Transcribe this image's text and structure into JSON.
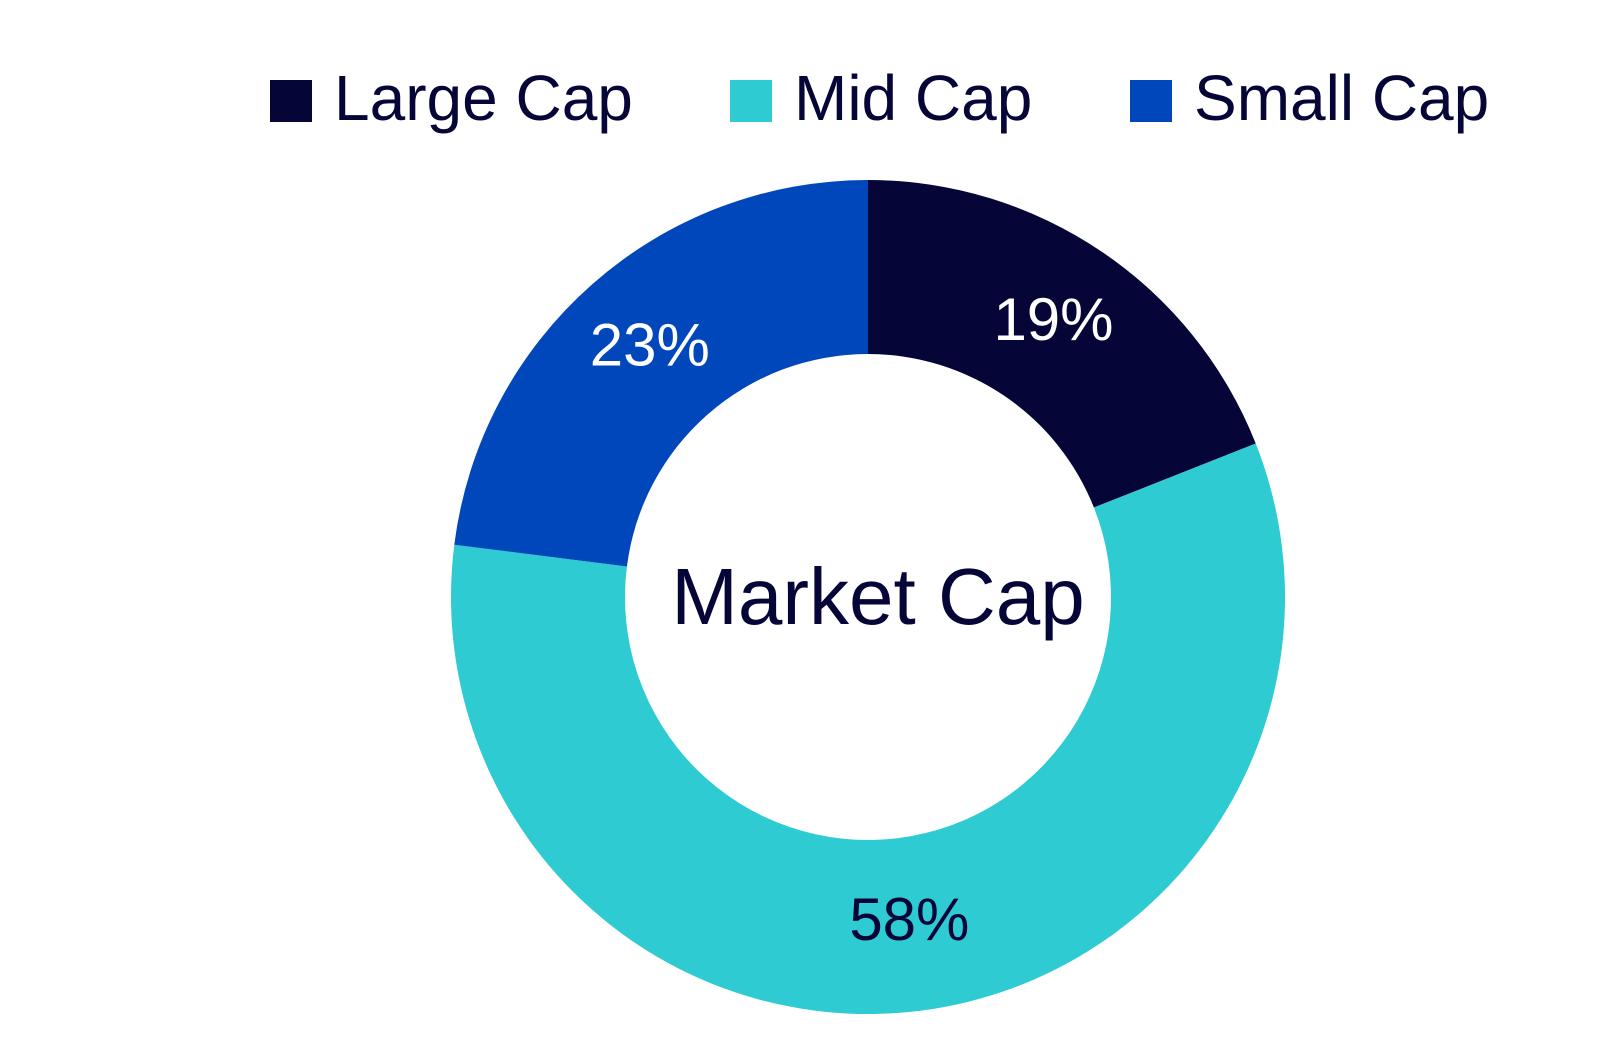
{
  "chart_data": {
    "type": "donut",
    "title": "Market Cap",
    "categories": [
      "Large Cap",
      "Mid Cap",
      "Small Cap"
    ],
    "values": [
      19,
      58,
      23
    ],
    "value_labels": [
      "19%",
      "58%",
      "23%"
    ],
    "colors": [
      "#050537",
      "#2ecbd2",
      "#0047bb"
    ],
    "legend": "top"
  }
}
